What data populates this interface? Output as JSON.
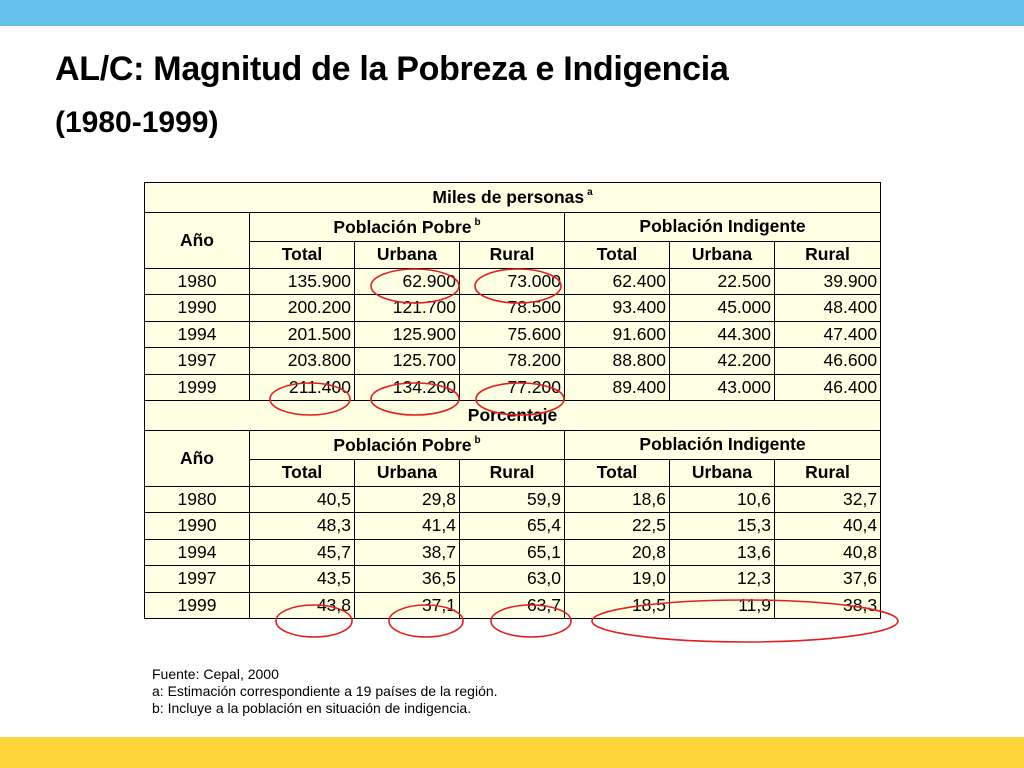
{
  "slide": {
    "title": "AL/C: Magnitud de la Pobreza e Indigencia",
    "subtitle": "(1980-1999)",
    "colors": {
      "top_bar": "#66c2ec",
      "bottom_bar": "#fdd53b",
      "table_bg": "#ffffe3",
      "highlight": "#e02020"
    }
  },
  "table": {
    "section1": {
      "title": "Miles de personas",
      "title_sup": "a",
      "year_label": "Año",
      "group_poor": "Población Pobre",
      "group_poor_sup": "b",
      "group_indigent": "Población Indigente",
      "columns": [
        "Total",
        "Urbana",
        "Rural",
        "Total",
        "Urbana",
        "Rural"
      ],
      "rows": [
        {
          "year": "1980",
          "values": [
            "135.900",
            "62.900",
            "73.000",
            "62.400",
            "22.500",
            "39.900"
          ]
        },
        {
          "year": "1990",
          "values": [
            "200.200",
            "121.700",
            "78.500",
            "93.400",
            "45.000",
            "48.400"
          ]
        },
        {
          "year": "1994",
          "values": [
            "201.500",
            "125.900",
            "75.600",
            "91.600",
            "44.300",
            "47.400"
          ]
        },
        {
          "year": "1997",
          "values": [
            "203.800",
            "125.700",
            "78.200",
            "88.800",
            "42.200",
            "46.600"
          ]
        },
        {
          "year": "1999",
          "values": [
            "211.400",
            "134.200",
            "77.200",
            "89.400",
            "43.000",
            "46.400"
          ]
        }
      ]
    },
    "section2": {
      "title": "Porcentaje",
      "year_label": "Año",
      "group_poor": "Población Pobre",
      "group_poor_sup": "b",
      "group_indigent": "Población Indigente",
      "columns": [
        "Total",
        "Urbana",
        "Rural",
        "Total",
        "Urbana",
        "Rural"
      ],
      "rows": [
        {
          "year": "1980",
          "values": [
            "40,5",
            "29,8",
            "59,9",
            "18,6",
            "10,6",
            "32,7"
          ]
        },
        {
          "year": "1990",
          "values": [
            "48,3",
            "41,4",
            "65,4",
            "22,5",
            "15,3",
            "40,4"
          ]
        },
        {
          "year": "1994",
          "values": [
            "45,7",
            "38,7",
            "65,1",
            "20,8",
            "13,6",
            "40,8"
          ]
        },
        {
          "year": "1997",
          "values": [
            "43,5",
            "36,5",
            "63,0",
            "19,0",
            "12,3",
            "37,6"
          ]
        },
        {
          "year": "1999",
          "values": [
            "43,8",
            "37,1",
            "63,7",
            "18,5",
            "11,9",
            "38,3"
          ]
        }
      ]
    }
  },
  "footnotes": [
    "Fuente: Cepal, 2000",
    "a: Estimación correspondiente a 19 países de la región.",
    "b: Incluye a la población en situación de indigencia."
  ]
}
